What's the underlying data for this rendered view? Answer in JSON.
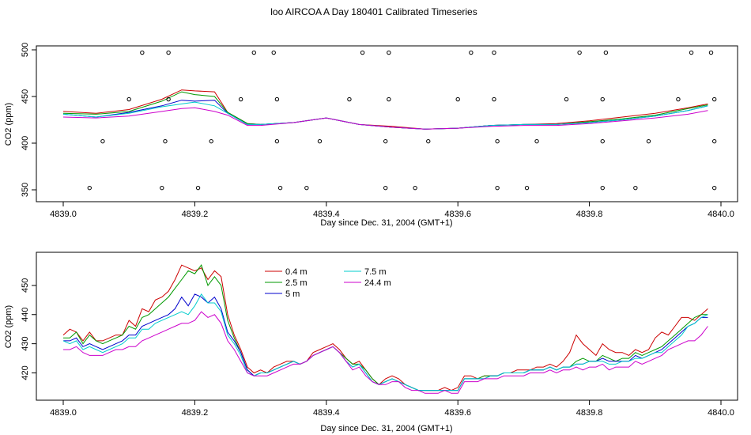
{
  "figure_title": "loo AIRCOA A  Day 180401  Calibrated Timeseries",
  "colors": {
    "cal_points": "#000000"
  },
  "chart_data": [
    {
      "type": "line",
      "title": "loo AIRCOA A  Day 180401  Calibrated Timeseries",
      "xlabel": "Day since Dec. 31, 2004 (GMT+1)",
      "ylabel": "CO2 (ppm)",
      "xlim": [
        4839.0,
        4840.0
      ],
      "ylim": [
        350,
        500
      ],
      "xticks": [
        "4839.0",
        "4839.2",
        "4839.4",
        "4839.6",
        "4839.8",
        "4840.0"
      ],
      "yticks": [
        "350",
        "400",
        "450",
        "500"
      ],
      "grid": false,
      "legend": "none",
      "x": [
        4839.0,
        4839.05,
        4839.1,
        4839.15,
        4839.18,
        4839.2,
        4839.23,
        4839.25,
        4839.28,
        4839.3,
        4839.35,
        4839.4,
        4839.45,
        4839.5,
        4839.55,
        4839.6,
        4839.65,
        4839.7,
        4839.75,
        4839.8,
        4839.85,
        4839.9,
        4839.95,
        4839.98
      ],
      "series": [
        {
          "color": "#cc0000",
          "values": [
            434,
            432,
            436,
            447,
            457,
            456,
            455,
            433,
            421,
            420,
            422,
            427,
            420,
            418,
            415,
            416,
            419,
            420,
            421,
            424,
            428,
            432,
            438,
            442
          ]
        },
        {
          "color": "#009900",
          "values": [
            432,
            431,
            434,
            445,
            455,
            452,
            450,
            433,
            421,
            420,
            422,
            427,
            420,
            417,
            415,
            416,
            419,
            420,
            420,
            423,
            426,
            430,
            437,
            441
          ]
        },
        {
          "color": "#0000cc",
          "values": [
            431,
            428,
            433,
            440,
            446,
            445,
            446,
            432,
            420,
            420,
            422,
            427,
            420,
            417,
            415,
            416,
            419,
            420,
            420,
            422,
            425,
            429,
            435,
            440
          ]
        },
        {
          "color": "#00cccc",
          "values": [
            431,
            428,
            432,
            439,
            442,
            444,
            440,
            432,
            420,
            420,
            422,
            427,
            420,
            417,
            415,
            416,
            419,
            420,
            420,
            422,
            425,
            429,
            435,
            440
          ]
        },
        {
          "color": "#cc00cc",
          "values": [
            428,
            427,
            429,
            434,
            437,
            438,
            434,
            430,
            419,
            419,
            422,
            427,
            420,
            417,
            415,
            416,
            418,
            419,
            419,
            421,
            424,
            427,
            431,
            435
          ]
        }
      ],
      "calibration_points": [
        {
          "x": 4839.04,
          "y": 352
        },
        {
          "x": 4839.06,
          "y": 402
        },
        {
          "x": 4839.1,
          "y": 447
        },
        {
          "x": 4839.12,
          "y": 497
        },
        {
          "x": 4839.15,
          "y": 352
        },
        {
          "x": 4839.155,
          "y": 402
        },
        {
          "x": 4839.16,
          "y": 447
        },
        {
          "x": 4839.16,
          "y": 497
        },
        {
          "x": 4839.205,
          "y": 352
        },
        {
          "x": 4839.225,
          "y": 402
        },
        {
          "x": 4839.27,
          "y": 447
        },
        {
          "x": 4839.29,
          "y": 497
        },
        {
          "x": 4839.32,
          "y": 497
        },
        {
          "x": 4839.325,
          "y": 447
        },
        {
          "x": 4839.325,
          "y": 402
        },
        {
          "x": 4839.33,
          "y": 352
        },
        {
          "x": 4839.37,
          "y": 352
        },
        {
          "x": 4839.39,
          "y": 402
        },
        {
          "x": 4839.435,
          "y": 447
        },
        {
          "x": 4839.455,
          "y": 497
        },
        {
          "x": 4839.49,
          "y": 352
        },
        {
          "x": 4839.49,
          "y": 402
        },
        {
          "x": 4839.495,
          "y": 447
        },
        {
          "x": 4839.495,
          "y": 497
        },
        {
          "x": 4839.535,
          "y": 352
        },
        {
          "x": 4839.555,
          "y": 402
        },
        {
          "x": 4839.6,
          "y": 447
        },
        {
          "x": 4839.62,
          "y": 497
        },
        {
          "x": 4839.655,
          "y": 497
        },
        {
          "x": 4839.655,
          "y": 447
        },
        {
          "x": 4839.66,
          "y": 402
        },
        {
          "x": 4839.66,
          "y": 352
        },
        {
          "x": 4839.705,
          "y": 352
        },
        {
          "x": 4839.72,
          "y": 402
        },
        {
          "x": 4839.765,
          "y": 447
        },
        {
          "x": 4839.785,
          "y": 497
        },
        {
          "x": 4839.82,
          "y": 352
        },
        {
          "x": 4839.82,
          "y": 402
        },
        {
          "x": 4839.82,
          "y": 447
        },
        {
          "x": 4839.825,
          "y": 497
        },
        {
          "x": 4839.87,
          "y": 352
        },
        {
          "x": 4839.89,
          "y": 402
        },
        {
          "x": 4839.935,
          "y": 447
        },
        {
          "x": 4839.955,
          "y": 497
        },
        {
          "x": 4839.985,
          "y": 497
        },
        {
          "x": 4839.99,
          "y": 447
        },
        {
          "x": 4839.99,
          "y": 402
        },
        {
          "x": 4839.99,
          "y": 352
        }
      ]
    },
    {
      "type": "line",
      "title": "",
      "xlabel": "Day since Dec. 31, 2004 (GMT+1)",
      "ylabel": "CO2 (ppm)",
      "xlim": [
        4839.0,
        4840.0
      ],
      "ylim": [
        412,
        460
      ],
      "xticks": [
        "4839.0",
        "4839.2",
        "4839.4",
        "4839.6",
        "4839.8",
        "4840.0"
      ],
      "yticks": [
        "420",
        "430",
        "440",
        "450"
      ],
      "grid": false,
      "legend": "top-left",
      "x": [
        4839.0,
        4839.01,
        4839.02,
        4839.03,
        4839.04,
        4839.05,
        4839.06,
        4839.07,
        4839.08,
        4839.09,
        4839.1,
        4839.11,
        4839.12,
        4839.13,
        4839.14,
        4839.15,
        4839.16,
        4839.17,
        4839.18,
        4839.19,
        4839.2,
        4839.21,
        4839.22,
        4839.23,
        4839.24,
        4839.25,
        4839.26,
        4839.27,
        4839.28,
        4839.29,
        4839.3,
        4839.31,
        4839.32,
        4839.33,
        4839.34,
        4839.35,
        4839.36,
        4839.37,
        4839.38,
        4839.39,
        4839.4,
        4839.41,
        4839.42,
        4839.43,
        4839.44,
        4839.45,
        4839.46,
        4839.47,
        4839.48,
        4839.49,
        4839.5,
        4839.51,
        4839.52,
        4839.53,
        4839.54,
        4839.55,
        4839.56,
        4839.57,
        4839.58,
        4839.59,
        4839.6,
        4839.61,
        4839.62,
        4839.63,
        4839.64,
        4839.65,
        4839.66,
        4839.67,
        4839.68,
        4839.69,
        4839.7,
        4839.71,
        4839.72,
        4839.73,
        4839.74,
        4839.75,
        4839.76,
        4839.77,
        4839.78,
        4839.79,
        4839.8,
        4839.81,
        4839.82,
        4839.83,
        4839.84,
        4839.85,
        4839.86,
        4839.87,
        4839.88,
        4839.89,
        4839.9,
        4839.91,
        4839.92,
        4839.93,
        4839.94,
        4839.95,
        4839.96,
        4839.97,
        4839.98
      ],
      "series": [
        {
          "name": "0.4 m",
          "color": "#cc0000",
          "values": [
            433,
            435,
            434,
            431,
            434,
            431,
            431,
            432,
            433,
            433,
            438,
            436,
            442,
            441,
            445,
            446,
            448,
            452,
            457,
            456,
            455,
            456,
            452,
            455,
            453,
            440,
            433,
            428,
            422,
            420,
            421,
            420,
            422,
            423,
            424,
            424,
            423,
            424,
            427,
            428,
            429,
            430,
            428,
            425,
            423,
            424,
            421,
            418,
            416,
            418,
            419,
            418,
            416,
            415,
            414,
            414,
            414,
            414,
            415,
            414,
            415,
            419,
            419,
            418,
            419,
            419,
            419,
            420,
            420,
            421,
            421,
            421,
            422,
            422,
            423,
            422,
            424,
            427,
            433,
            430,
            428,
            426,
            430,
            428,
            427,
            427,
            426,
            428,
            427,
            428,
            432,
            434,
            433,
            436,
            439,
            439,
            438,
            440,
            442
          ]
        },
        {
          "name": "2.5 m",
          "color": "#009900",
          "values": [
            432,
            432,
            434,
            430,
            433,
            431,
            430,
            431,
            432,
            433,
            436,
            435,
            439,
            440,
            442,
            444,
            446,
            449,
            452,
            455,
            454,
            457,
            450,
            453,
            450,
            438,
            432,
            427,
            421,
            419,
            420,
            420,
            421,
            422,
            423,
            424,
            423,
            424,
            426,
            427,
            428,
            429,
            427,
            425,
            423,
            423,
            421,
            418,
            416,
            417,
            418,
            417,
            416,
            415,
            414,
            414,
            414,
            414,
            414,
            414,
            414,
            418,
            418,
            418,
            419,
            419,
            419,
            420,
            420,
            420,
            420,
            421,
            421,
            421,
            422,
            421,
            422,
            422,
            424,
            425,
            424,
            424,
            426,
            425,
            424,
            425,
            425,
            427,
            426,
            427,
            428,
            429,
            431,
            433,
            435,
            437,
            439,
            440,
            440
          ]
        },
        {
          "name": "5 m",
          "color": "#0000cc",
          "values": [
            431,
            431,
            432,
            429,
            430,
            429,
            428,
            429,
            430,
            431,
            433,
            433,
            436,
            437,
            438,
            439,
            440,
            442,
            446,
            443,
            447,
            446,
            444,
            446,
            442,
            434,
            431,
            427,
            421,
            419,
            420,
            420,
            421,
            422,
            423,
            424,
            423,
            424,
            426,
            427,
            428,
            429,
            427,
            424,
            422,
            423,
            420,
            417,
            416,
            417,
            418,
            417,
            416,
            415,
            414,
            414,
            414,
            414,
            414,
            414,
            414,
            418,
            418,
            418,
            418,
            419,
            419,
            420,
            420,
            420,
            420,
            421,
            421,
            421,
            422,
            421,
            422,
            422,
            423,
            423,
            424,
            424,
            425,
            424,
            424,
            424,
            424,
            426,
            425,
            426,
            427,
            428,
            430,
            432,
            434,
            436,
            437,
            439,
            439
          ]
        },
        {
          "name": "7.5 m",
          "color": "#00cccc",
          "values": [
            431,
            430,
            431,
            428,
            429,
            428,
            427,
            428,
            429,
            430,
            432,
            432,
            435,
            435,
            437,
            438,
            439,
            440,
            441,
            440,
            443,
            447,
            444,
            444,
            441,
            433,
            430,
            426,
            420,
            419,
            420,
            420,
            421,
            422,
            423,
            424,
            423,
            424,
            426,
            427,
            428,
            429,
            427,
            424,
            422,
            423,
            420,
            417,
            416,
            417,
            418,
            417,
            416,
            415,
            414,
            414,
            414,
            414,
            414,
            414,
            414,
            418,
            418,
            418,
            418,
            419,
            419,
            420,
            420,
            420,
            420,
            421,
            421,
            421,
            422,
            421,
            422,
            422,
            423,
            423,
            424,
            424,
            424,
            423,
            423,
            424,
            424,
            425,
            425,
            426,
            427,
            427,
            429,
            431,
            433,
            436,
            437,
            439,
            440
          ]
        },
        {
          "name": "24.4 m",
          "color": "#cc00cc",
          "values": [
            428,
            428,
            429,
            427,
            426,
            426,
            426,
            427,
            428,
            428,
            429,
            429,
            431,
            432,
            433,
            434,
            435,
            436,
            437,
            437,
            438,
            441,
            439,
            440,
            437,
            431,
            428,
            424,
            420,
            419,
            419,
            419,
            420,
            421,
            422,
            423,
            423,
            424,
            426,
            427,
            428,
            429,
            427,
            424,
            421,
            422,
            419,
            417,
            416,
            416,
            417,
            417,
            415,
            414,
            414,
            413,
            413,
            413,
            414,
            413,
            413,
            417,
            417,
            417,
            418,
            418,
            418,
            419,
            419,
            419,
            419,
            420,
            420,
            420,
            421,
            420,
            421,
            421,
            422,
            421,
            422,
            422,
            423,
            421,
            422,
            422,
            422,
            424,
            423,
            424,
            425,
            426,
            428,
            429,
            430,
            431,
            431,
            433,
            436
          ]
        }
      ]
    }
  ]
}
